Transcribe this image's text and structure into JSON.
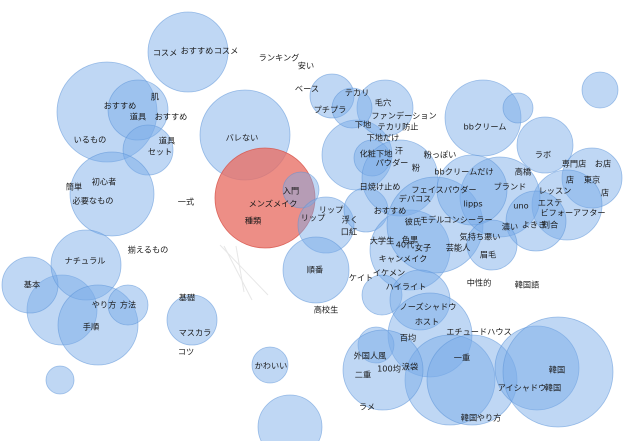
{
  "words": [
    "コスメ",
    "おすすめ",
    "コスメ",
    "ランキング",
    "安い",
    "ベース",
    "テカリ",
    "毛穴",
    "プチプラ",
    "ファンデーション",
    "テカリ防止",
    "bbクリーム",
    "下地",
    "下地だけ",
    "化粧下地",
    "汗",
    "肌",
    "おすすめ",
    "道具",
    "おすすめ",
    "いるもの",
    "道具",
    "セット",
    "バレない",
    "粉っぽい",
    "ラボ",
    "専門店",
    "パウダー",
    "粉",
    "高橋",
    "お店",
    "bbクリームだけ",
    "店",
    "東京",
    "簡単",
    "初心者",
    "ブランド",
    "レッスン",
    "店",
    "必要なもの",
    "入門",
    "日焼け止め",
    "フェイスパウダー",
    "デパコス",
    "エステ",
    "一式",
    "メンズメイク",
    "リップ",
    "おすすめ",
    "lipps",
    "uno",
    "ビフォーアフター",
    "種類",
    "浮く",
    "リップ",
    "彼氏",
    "モデル",
    "コンシーラー",
    "よきき",
    "濃い",
    "割合",
    "口紅",
    "色黒",
    "気持ち悪い",
    "揃えるもの",
    "大学生",
    "40代",
    "女子",
    "芸能人",
    "眉毛",
    "ナチュラル",
    "順番",
    "イケメン",
    "ケイト",
    "キャンメイク",
    "基本",
    "ハイライト",
    "中性的",
    "韓国語",
    "方法",
    "やり方",
    "基礎",
    "高校生",
    "ノーズシャドウ",
    "ホスト",
    "手順",
    "マスカラ",
    "エチュードハウス",
    "百均",
    "コツ",
    "一重",
    "韓国",
    "外国人風",
    "二重",
    "かわいい",
    "100均",
    "涙袋",
    "アイシャドウ",
    "韓国",
    "ラメ",
    "韓国",
    "やり方"
  ],
  "colors": {
    "bubble": "#7aabe8",
    "center_bubble": "#e86e64",
    "text": "#1a1a1a"
  }
}
